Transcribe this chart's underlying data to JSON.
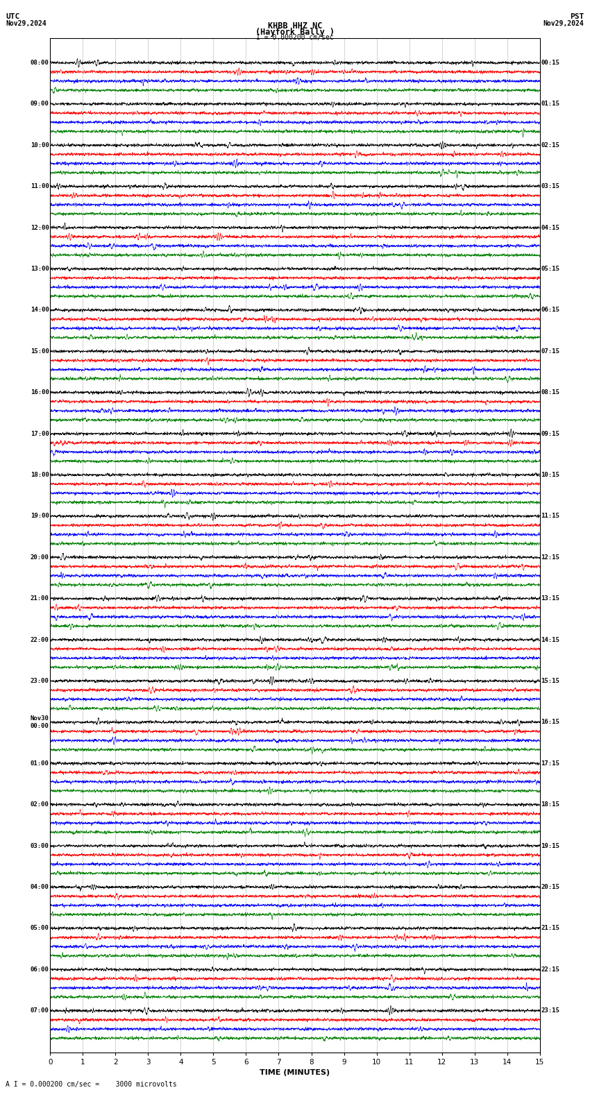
{
  "title_line1": "KHBB HHZ NC",
  "title_line2": "(Hayfork Bally )",
  "scale_label": "I = 0.000200 cm/sec",
  "utc_label": "UTC",
  "pst_label": "PST",
  "date_left": "Nov29,2024",
  "date_right": "Nov29,2024",
  "bottom_label": "A I = 0.000200 cm/sec =    3000 microvolts",
  "xlabel": "TIME (MINUTES)",
  "xlim": [
    0,
    15
  ],
  "xticks": [
    0,
    1,
    2,
    3,
    4,
    5,
    6,
    7,
    8,
    9,
    10,
    11,
    12,
    13,
    14,
    15
  ],
  "bg_color": "#ffffff",
  "colors": [
    "black",
    "red",
    "blue",
    "green"
  ],
  "left_times": [
    "08:00",
    "09:00",
    "10:00",
    "11:00",
    "12:00",
    "13:00",
    "14:00",
    "15:00",
    "16:00",
    "17:00",
    "18:00",
    "19:00",
    "20:00",
    "21:00",
    "22:00",
    "23:00",
    "Nov30\n00:00",
    "01:00",
    "02:00",
    "03:00",
    "04:00",
    "05:00",
    "06:00",
    "07:00"
  ],
  "right_times": [
    "00:15",
    "01:15",
    "02:15",
    "03:15",
    "04:15",
    "05:15",
    "06:15",
    "07:15",
    "08:15",
    "09:15",
    "10:15",
    "11:15",
    "12:15",
    "13:15",
    "14:15",
    "15:15",
    "16:15",
    "17:15",
    "18:15",
    "19:15",
    "20:15",
    "21:15",
    "22:15",
    "23:15"
  ],
  "num_rows": 24,
  "traces_per_row": 4,
  "figsize": [
    8.5,
    15.84
  ],
  "dpi": 100
}
